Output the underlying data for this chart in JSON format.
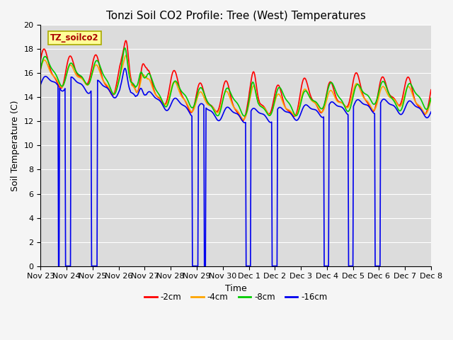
{
  "title": "Tonzi Soil CO2 Profile: Tree (West) Temperatures",
  "ylabel": "Soil Temperature (C)",
  "xlabel": "Time",
  "annotation": "TZ_soilco2",
  "ylim": [
    0,
    20
  ],
  "bg_color": "#dcdcdc",
  "grid_color": "#ffffff",
  "fig_bg_color": "#f5f5f5",
  "series_colors": [
    "#ff0000",
    "#ffa500",
    "#00cc00",
    "#0000ee"
  ],
  "series_labels": [
    "-2cm",
    "-4cm",
    "-8cm",
    "-16cm"
  ],
  "xtick_labels": [
    "Nov 23",
    "Nov 24",
    "Nov 25",
    "Nov 26",
    "Nov 27",
    "Nov 28",
    "Nov 29",
    "Nov 30",
    "Dec 1",
    "Dec 2",
    "Dec 3",
    "Dec 4",
    "Dec 5",
    "Dec 6",
    "Dec 7",
    "Dec 8"
  ],
  "title_fontsize": 11,
  "label_fontsize": 9,
  "tick_fontsize": 8,
  "linewidth": 1.2
}
